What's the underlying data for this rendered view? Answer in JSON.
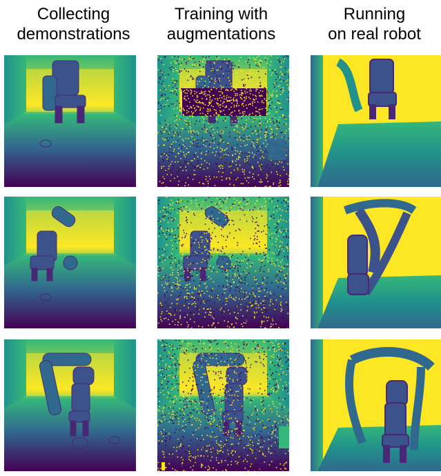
{
  "columns": [
    {
      "title_line1": "Collecting",
      "title_line2": "demonstrations"
    },
    {
      "title_line1": "Training with",
      "title_line2": "augmentations"
    },
    {
      "title_line1": "Running",
      "title_line2": "on real robot"
    }
  ],
  "palette": {
    "viridis_dark": "#440154",
    "viridis_blue": "#31688e",
    "viridis_teal": "#21918c",
    "viridis_green": "#35b779",
    "viridis_yellow": "#fde725",
    "robot_body": "#3b528b",
    "robot_dark": "#482777",
    "noise_dark": "#440154",
    "noise_light": "#fde725"
  }
}
